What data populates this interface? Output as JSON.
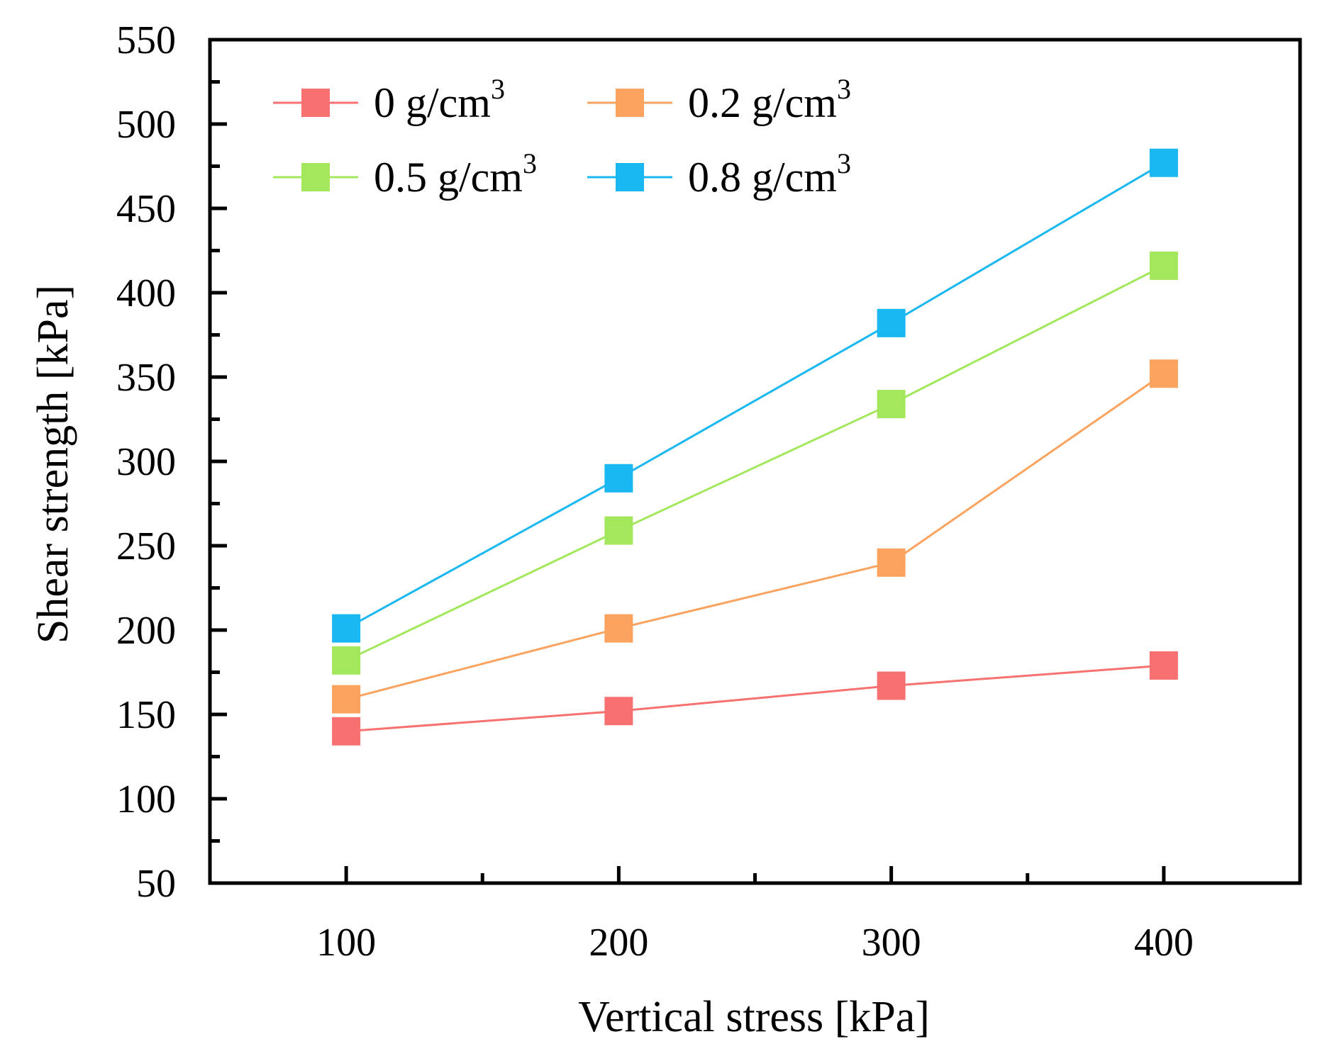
{
  "chart_data": {
    "type": "line",
    "title": "",
    "xlabel": "Vertical stress [kPa]",
    "ylabel": "Shear strength [kPa]",
    "x": [
      100,
      200,
      300,
      400
    ],
    "xlim": [
      50,
      450
    ],
    "ylim": [
      50,
      550
    ],
    "xticks": [
      100,
      200,
      300,
      400
    ],
    "yticks": [
      50,
      100,
      150,
      200,
      250,
      300,
      350,
      400,
      450,
      500,
      550
    ],
    "grid": false,
    "legend_position": "top-left",
    "series": [
      {
        "name": "0 g/cm",
        "superscript": "3",
        "color": "#f87171",
        "values": [
          140,
          152,
          167,
          179
        ]
      },
      {
        "name": "0.2 g/cm",
        "superscript": "3",
        "color": "#fba35f",
        "values": [
          159,
          201,
          240,
          352
        ]
      },
      {
        "name": "0.5 g/cm",
        "superscript": "3",
        "color": "#a3e85c",
        "values": [
          182,
          259,
          334,
          416
        ]
      },
      {
        "name": "0.8 g/cm",
        "superscript": "3",
        "color": "#1ab8f2",
        "values": [
          201,
          290,
          382,
          477
        ]
      }
    ]
  }
}
